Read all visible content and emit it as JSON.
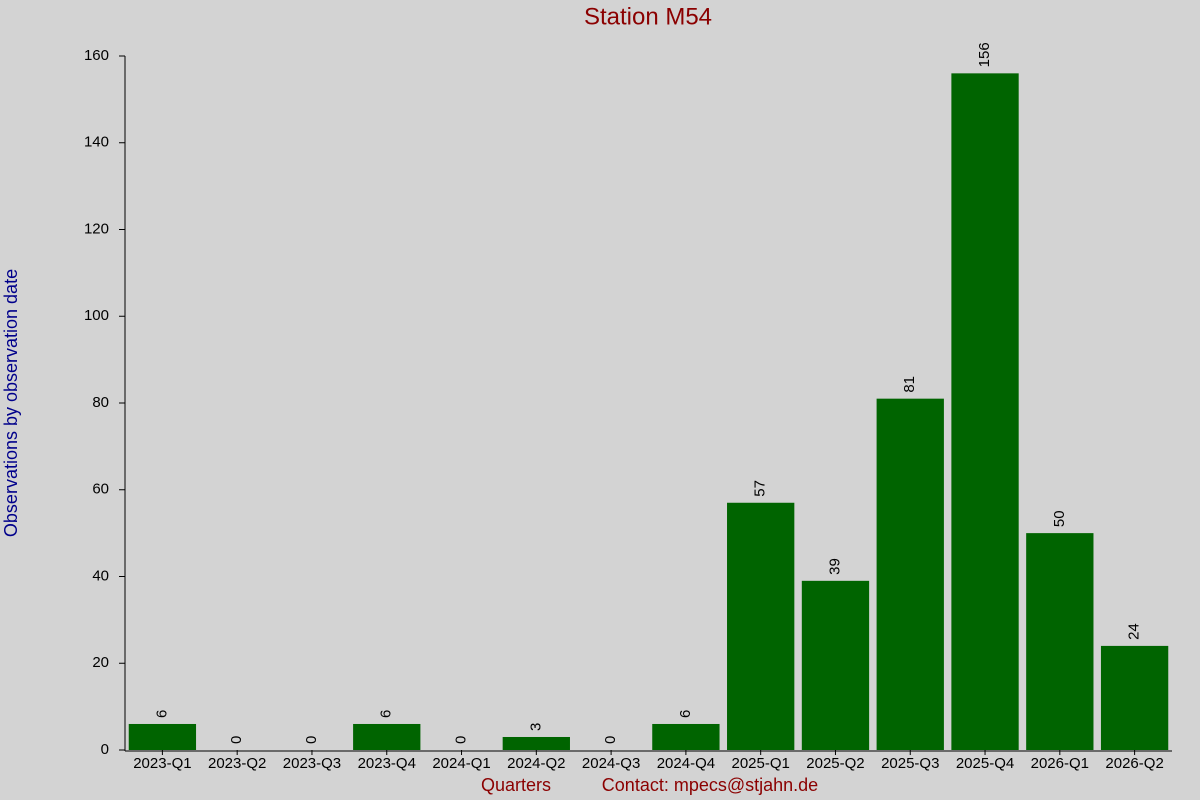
{
  "chart_data": {
    "type": "bar",
    "title": "Station M54",
    "y_label": "Observations by observation date",
    "x_label": "Quarters",
    "note": "Contact: mpecs@stjahn.de",
    "categories": [
      "2023-Q1",
      "2023-Q2",
      "2023-Q3",
      "2023-Q4",
      "2024-Q1",
      "2024-Q2",
      "2024-Q3",
      "2024-Q4",
      "2025-Q1",
      "2025-Q2",
      "2025-Q3",
      "2025-Q4",
      "2026-Q1",
      "2026-Q2"
    ],
    "values": [
      6,
      0,
      0,
      6,
      0,
      3,
      0,
      6,
      57,
      39,
      81,
      156,
      50,
      24
    ],
    "color": "#006400",
    "ylim": [
      0,
      160
    ],
    "yticks": [
      0,
      20,
      40,
      60,
      80,
      100,
      120,
      140,
      160
    ]
  }
}
